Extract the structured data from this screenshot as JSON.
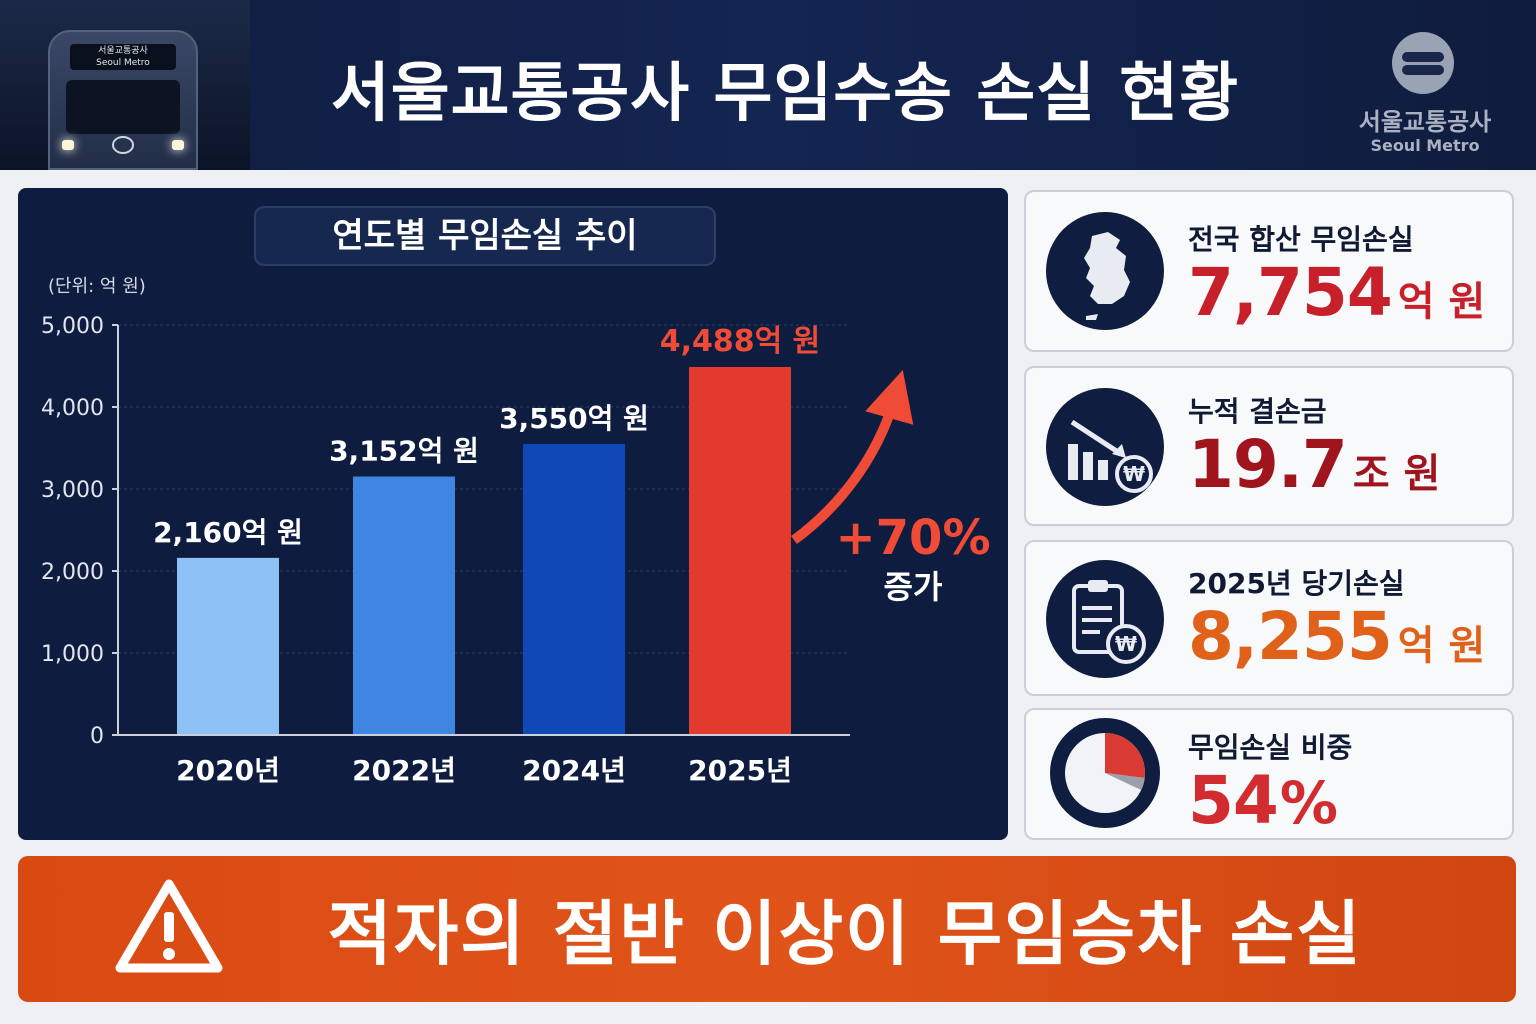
{
  "header": {
    "title": "서울교통공사 무임수송 손실 현황",
    "train_sign_ko": "서울교통공사",
    "train_sign_en": "Seoul Metro",
    "brand_ko": "서울교통공사",
    "brand_en": "Seoul Metro"
  },
  "chart_data": {
    "type": "bar",
    "title": "연도별 무임손실 추이",
    "unit_label": "(단위: 억 원)",
    "categories": [
      "2020년",
      "2022년",
      "2024년",
      "2025년"
    ],
    "values": [
      2160,
      3152,
      3550,
      4488
    ],
    "value_labels": [
      "2,160억 원",
      "3,152억 원",
      "3,550억 원",
      "4,488억 원"
    ],
    "ylim": [
      0,
      5000
    ],
    "yticks": [
      0,
      1000,
      2000,
      3000,
      4000,
      5000
    ],
    "ytick_labels": [
      "0",
      "1,000",
      "2,000",
      "3,000",
      "4,000",
      "5,000"
    ],
    "grid": true,
    "colors": [
      "#8ec2f7",
      "#3f86e3",
      "#0f49b8",
      "#e23a2c"
    ],
    "annotation": {
      "value": "+70%",
      "label": "증가",
      "color": "#f04b36"
    }
  },
  "cards": [
    {
      "label": "전국 합산 무임손실",
      "number": "7,754",
      "unit": "억 원",
      "color": "#c8202a",
      "icon": "korea-map-icon"
    },
    {
      "label": "누적 결손금",
      "number": "19.7",
      "unit": "조 원",
      "color": "#a0141e",
      "icon": "declining-bars-won-icon"
    },
    {
      "label": "2025년 당기손실",
      "number": "8,255",
      "unit": "억 원",
      "color": "#e0621a",
      "icon": "clipboard-won-icon"
    },
    {
      "label": "무임손실 비중",
      "number": "54",
      "unit": "%",
      "color": "#d32c30",
      "icon": "pie-chart-icon",
      "share": 0.54
    }
  ],
  "banner": {
    "text": "적자의 절반 이상이 무임승차 손실",
    "icon": "warning-icon"
  }
}
